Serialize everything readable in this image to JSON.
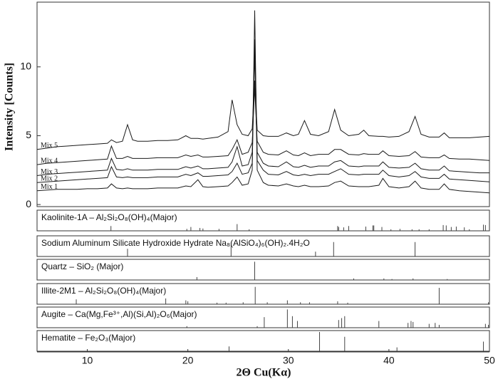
{
  "chart_data": {
    "type": "line",
    "ylabel": "Intensity [Counts]",
    "xlabel": "2Θ Cu(Kα)",
    "xlim": [
      5,
      50
    ],
    "xticks": [
      10,
      20,
      30,
      40,
      50
    ],
    "ylim": [
      -0.15,
      14.7
    ],
    "yticks": [
      0,
      5,
      10
    ],
    "x": [
      5,
      6,
      7,
      8,
      9,
      10,
      11,
      12,
      12.4,
      12.9,
      13.5,
      14,
      14.5,
      15,
      16,
      17,
      18,
      19,
      19.8,
      20.3,
      21,
      21.5,
      22,
      23,
      24,
      24.4,
      24.9,
      25.4,
      26,
      26.4,
      26.65,
      26.9,
      27.5,
      28,
      29,
      29.8,
      30.5,
      31,
      31.6,
      32.2,
      33,
      34,
      34.6,
      35.2,
      36,
      37,
      37.5,
      38,
      39,
      39.4,
      40,
      41,
      42,
      42.6,
      43.2,
      44,
      45,
      45.5,
      46,
      47,
      48,
      49,
      50
    ],
    "series": [
      {
        "name": "Mix 1",
        "color": "#1a1a1a",
        "values": [
          1.0,
          1.05,
          1.1,
          1.1,
          1.1,
          1.15,
          1.15,
          1.2,
          1.5,
          1.2,
          1.15,
          1.2,
          1.15,
          1.15,
          1.15,
          1.2,
          1.2,
          1.2,
          1.35,
          1.3,
          1.8,
          1.3,
          1.25,
          1.3,
          1.35,
          1.6,
          2.0,
          1.4,
          1.5,
          2.5,
          14.1,
          2.5,
          1.6,
          1.4,
          1.35,
          1.5,
          1.35,
          1.3,
          1.4,
          1.3,
          1.3,
          1.35,
          1.6,
          1.7,
          1.35,
          1.3,
          1.3,
          1.3,
          1.4,
          1.9,
          1.3,
          1.2,
          1.3,
          1.7,
          1.2,
          1.1,
          1.1,
          1.5,
          1.1,
          1.0,
          0.95,
          0.9,
          0.85
        ]
      },
      {
        "name": "Mix 2",
        "color": "#1a1a1a",
        "values": [
          1.6,
          1.65,
          1.7,
          1.75,
          1.8,
          1.85,
          1.9,
          1.95,
          2.75,
          2.0,
          1.95,
          2.0,
          1.95,
          1.95,
          1.95,
          2.0,
          2.0,
          2.0,
          2.2,
          2.1,
          2.3,
          2.05,
          2.05,
          2.1,
          2.15,
          2.4,
          3.0,
          2.2,
          2.3,
          3.0,
          11.0,
          3.2,
          2.5,
          2.2,
          2.15,
          2.4,
          2.15,
          2.1,
          2.2,
          2.1,
          2.2,
          2.2,
          2.4,
          2.6,
          2.2,
          2.15,
          2.2,
          2.2,
          2.2,
          2.5,
          2.1,
          2.0,
          2.1,
          2.4,
          2.0,
          1.9,
          1.9,
          2.2,
          1.85,
          1.8,
          1.75,
          1.7,
          1.65
        ]
      },
      {
        "name": "Mix 3",
        "color": "#1a1a1a",
        "values": [
          2.1,
          2.2,
          2.25,
          2.3,
          2.35,
          2.4,
          2.45,
          2.5,
          3.35,
          2.55,
          2.5,
          2.6,
          2.5,
          2.5,
          2.5,
          2.55,
          2.55,
          2.55,
          2.75,
          2.65,
          2.8,
          2.6,
          2.6,
          2.65,
          2.7,
          3.1,
          4.2,
          2.8,
          2.9,
          3.8,
          12.0,
          3.8,
          3.0,
          2.8,
          2.75,
          3.1,
          2.75,
          2.7,
          2.85,
          2.7,
          2.8,
          2.8,
          3.1,
          3.2,
          2.8,
          2.75,
          2.8,
          2.8,
          2.8,
          3.1,
          2.7,
          2.65,
          2.7,
          3.0,
          2.6,
          2.5,
          2.5,
          2.8,
          2.45,
          2.4,
          2.35,
          2.3,
          2.3
        ]
      },
      {
        "name": "Mix 4",
        "color": "#1a1a1a",
        "values": [
          2.9,
          3.0,
          3.05,
          3.1,
          3.15,
          3.2,
          3.25,
          3.3,
          4.25,
          3.35,
          3.35,
          3.5,
          3.35,
          3.35,
          3.35,
          3.4,
          3.4,
          3.4,
          3.6,
          3.5,
          3.6,
          3.45,
          3.45,
          3.5,
          3.55,
          4.0,
          4.7,
          3.65,
          3.8,
          4.5,
          8.5,
          4.6,
          3.8,
          3.65,
          3.6,
          3.9,
          3.6,
          3.55,
          3.75,
          3.55,
          3.65,
          3.65,
          4.0,
          4.0,
          3.65,
          3.6,
          3.7,
          3.65,
          3.65,
          3.9,
          3.55,
          3.5,
          3.55,
          3.85,
          3.45,
          3.4,
          3.4,
          3.6,
          3.35,
          3.3,
          3.3,
          3.25,
          3.2
        ]
      },
      {
        "name": "Mix 5",
        "color": "#1a1a1a",
        "values": [
          4.0,
          4.1,
          4.2,
          4.25,
          4.3,
          4.35,
          4.4,
          4.45,
          4.7,
          4.5,
          4.6,
          5.8,
          4.7,
          4.6,
          4.6,
          4.65,
          4.65,
          4.7,
          5.0,
          4.8,
          4.8,
          4.75,
          4.8,
          4.9,
          5.3,
          7.6,
          5.8,
          5.1,
          5.0,
          5.5,
          9.0,
          5.4,
          5.0,
          4.95,
          4.95,
          5.2,
          5.0,
          5.1,
          6.1,
          5.1,
          5.0,
          5.3,
          6.9,
          5.4,
          5.0,
          5.1,
          5.4,
          5.0,
          4.95,
          4.95,
          4.9,
          4.95,
          5.3,
          6.4,
          5.1,
          4.9,
          4.9,
          5.2,
          4.85,
          4.85,
          4.85,
          4.9,
          4.95
        ]
      }
    ],
    "reference_patterns": [
      {
        "name": "Kaolinite-1A – Al₂Si₂O₈(OH)₄(Major)",
        "positions": [
          12.35,
          19.9,
          20.3,
          21.2,
          21.5,
          23.1,
          24.9,
          26.1,
          34.9,
          35.0,
          35.5,
          36.0,
          37.7,
          38.4,
          38.5,
          39.3,
          40.2,
          41.1,
          42.3,
          43.0,
          44.0,
          45.4,
          45.7,
          46.2,
          46.7,
          47.5,
          48.0,
          49.4,
          49.6
        ],
        "intensities": [
          25,
          10,
          20,
          15,
          12,
          10,
          35,
          8,
          25,
          20,
          18,
          25,
          22,
          28,
          28,
          20,
          8,
          10,
          8,
          8,
          8,
          30,
          28,
          20,
          22,
          18,
          8,
          32,
          30
        ]
      },
      {
        "name": "Sodium Aluminum Silicate Hydroxide Hydrate Na₈(AlSiO₄)₆(OH)₂.4H₂O",
        "positions": [
          14.0,
          24.3,
          32.7,
          34.5,
          42.6
        ],
        "intensities": [
          40,
          60,
          25,
          75,
          75
        ]
      },
      {
        "name": "Quartz – SiO₂ (Major)",
        "positions": [
          20.9,
          26.65,
          36.5,
          39.5,
          40.3,
          42.4,
          45.8,
          50.0
        ],
        "intensities": [
          15,
          95,
          8,
          8,
          5,
          8,
          5,
          10
        ]
      },
      {
        "name": "Illite-2M1 – Al₂Si₂O₈(OH)₄(Major)",
        "positions": [
          8.9,
          17.8,
          19.8,
          20.0,
          22.9,
          23.8,
          25.5,
          26.7,
          27.9,
          29.9,
          31.2,
          32.1,
          34.9,
          35.9,
          45.0,
          49.9
        ],
        "intensities": [
          25,
          30,
          20,
          15,
          8,
          8,
          10,
          90,
          10,
          20,
          10,
          10,
          15,
          8,
          85,
          10
        ]
      },
      {
        "name": "Augite – Ca(Mg,Fe³⁺,Al)(Si,Al)₂O₆(Major)",
        "positions": [
          19.9,
          26.9,
          27.6,
          29.9,
          30.4,
          30.9,
          35.0,
          35.3,
          35.6,
          39.0,
          41.9,
          42.2,
          42.4,
          44.0,
          44.6,
          45.0,
          49.6,
          49.9
        ],
        "intensities": [
          8,
          8,
          55,
          95,
          60,
          35,
          40,
          50,
          60,
          35,
          25,
          35,
          30,
          20,
          25,
          15,
          20,
          15
        ]
      },
      {
        "name": "Hematite – Fe₂O₃(Major)",
        "positions": [
          24.1,
          33.1,
          35.6,
          40.8,
          49.4
        ],
        "intensities": [
          25,
          100,
          75,
          20,
          50
        ]
      }
    ]
  }
}
